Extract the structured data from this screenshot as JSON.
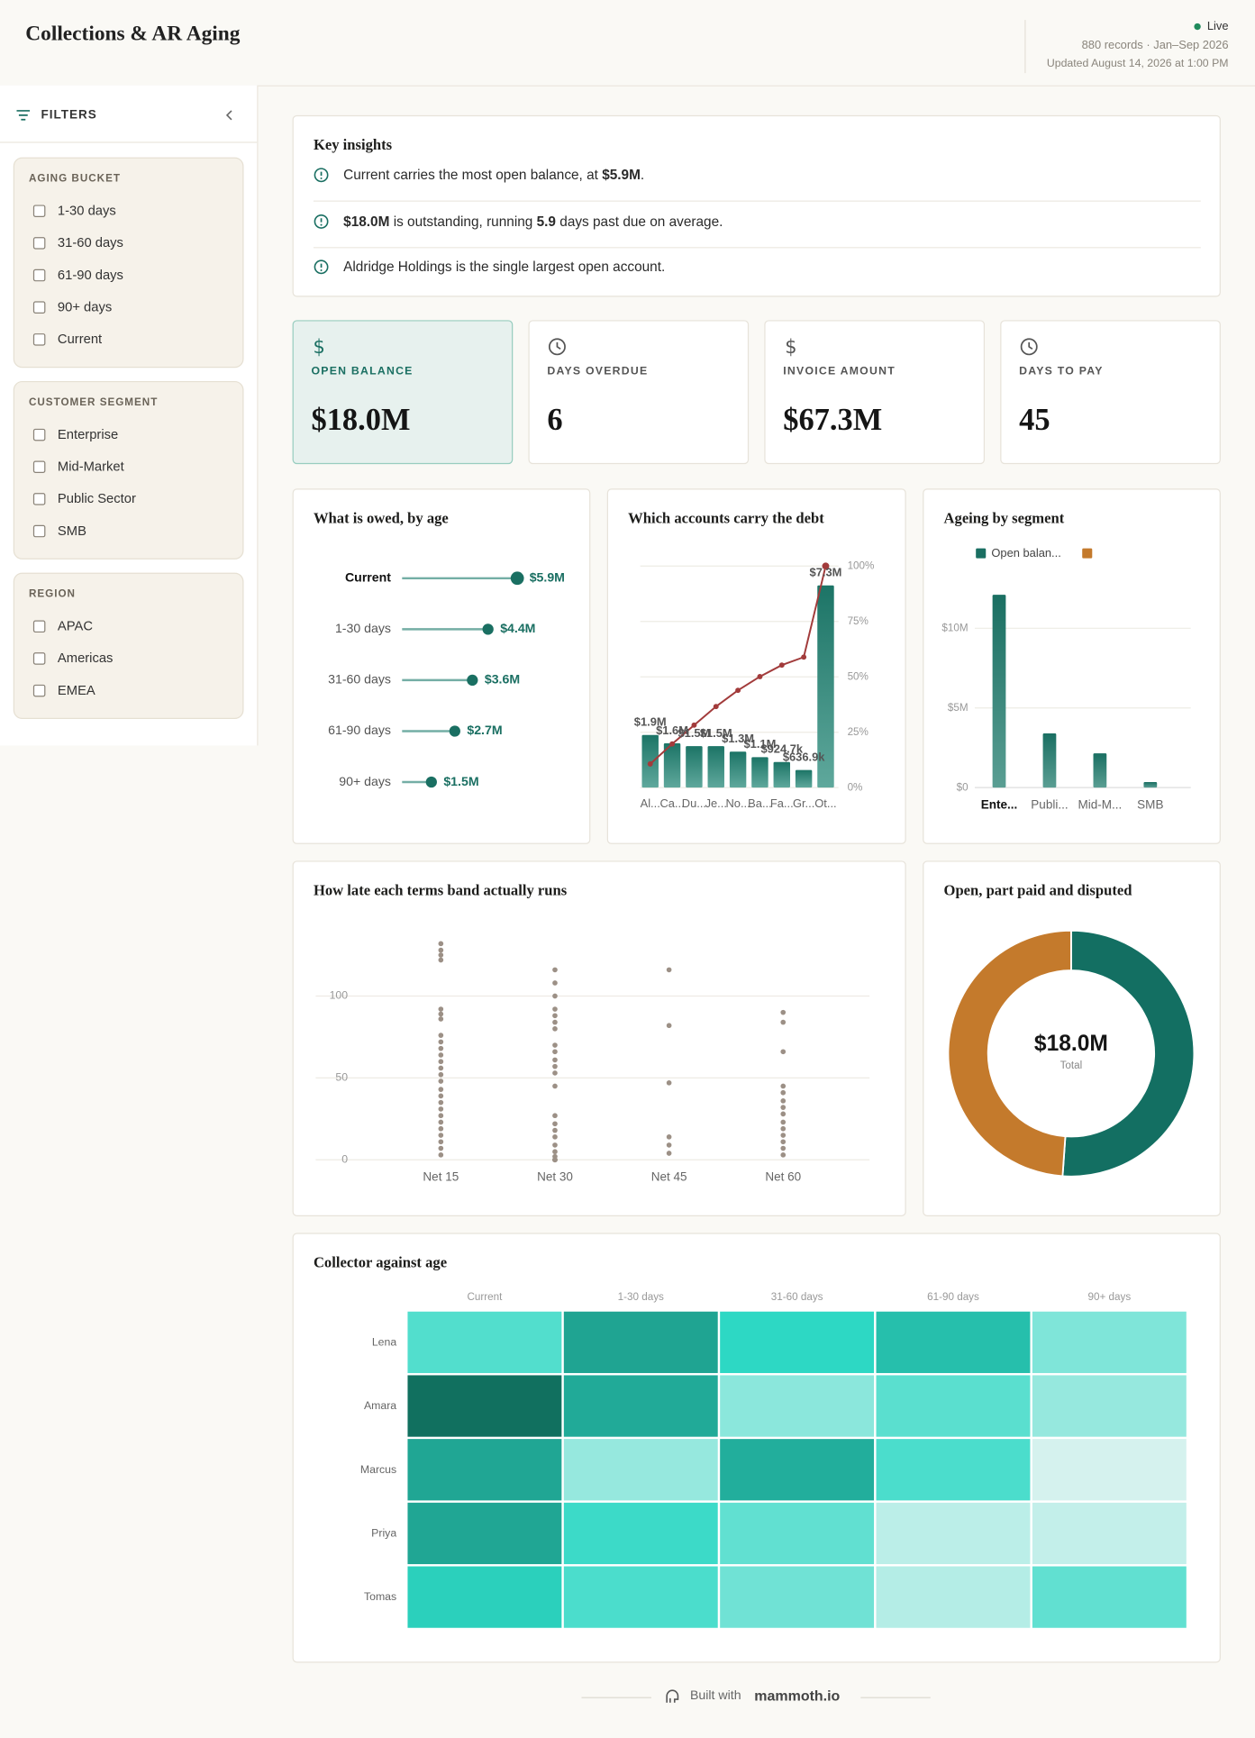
{
  "header": {
    "title": "Collections & AR Aging",
    "status": "Live",
    "records": "880 records · Jan–Sep 2026",
    "updated": "Updated August 14, 2026 at 1:00 PM"
  },
  "filters": {
    "title": "FILTERS",
    "groups": [
      {
        "title": "AGING BUCKET",
        "options": [
          "1-30 days",
          "31-60 days",
          "61-90 days",
          "90+ days",
          "Current"
        ]
      },
      {
        "title": "CUSTOMER SEGMENT",
        "options": [
          "Enterprise",
          "Mid-Market",
          "Public Sector",
          "SMB"
        ]
      },
      {
        "title": "REGION",
        "options": [
          "APAC",
          "Americas",
          "EMEA"
        ]
      }
    ]
  },
  "insights": {
    "title": "Key insights",
    "items": [
      {
        "segments": [
          {
            "text": "Current carries the most open balance, at "
          },
          {
            "text": "$5.9M",
            "bold": true
          },
          {
            "text": "."
          }
        ]
      },
      {
        "segments": [
          {
            "text": "$18.0M",
            "bold": true
          },
          {
            "text": " is outstanding, running "
          },
          {
            "text": "5.9",
            "bold": true
          },
          {
            "text": " days past due on average."
          }
        ]
      },
      {
        "segments": [
          {
            "text": "Aldridge Holdings is the single largest open account."
          }
        ]
      }
    ]
  },
  "kpis": [
    {
      "label": "OPEN BALANCE",
      "value": "$18.0M"
    },
    {
      "label": "DAYS OVERDUE",
      "value": "6"
    },
    {
      "label": "INVOICE AMOUNT",
      "value": "$67.3M"
    },
    {
      "label": "DAYS TO PAY",
      "value": "45"
    }
  ],
  "chart_data": [
    {
      "type": "lollipop",
      "title": "What is owed, by age",
      "categories": [
        "Current",
        "1-30 days",
        "31-60 days",
        "61-90 days",
        "90+ days"
      ],
      "values": [
        5.9,
        4.4,
        3.6,
        2.7,
        1.5
      ],
      "value_labels": [
        "$5.9M",
        "$4.4M",
        "$3.6M",
        "$2.7M",
        "$1.5M"
      ],
      "color": "#1a6f62"
    },
    {
      "type": "pareto",
      "title": "Which accounts carry the debt",
      "categories": [
        "Al...",
        "Ca...",
        "Du...",
        "Je...",
        "No...",
        "Ba...",
        "Fa...",
        "Gr...",
        "Ot..."
      ],
      "series": [
        {
          "color": "#1c7466",
          "values": [
            1.9,
            1.6,
            1.5,
            1.5,
            1.3,
            1.1,
            0.9247,
            0.6369,
            7.3
          ],
          "value_labels": [
            "$1.9M",
            "$1.6M",
            "$1.5M",
            "$1.5M",
            "$1.3M",
            "$1.1M",
            "$924.7k",
            "$636.9k",
            "$7.3M"
          ]
        },
        {
          "axis": "y2",
          "color": "#a23b3b",
          "values": [
            10.7,
            19.7,
            28.2,
            36.6,
            43.9,
            50.1,
            55.3,
            58.9,
            100
          ]
        }
      ],
      "ylim": [
        0,
        8
      ],
      "y2lim": [
        0,
        100
      ],
      "y2ticks": [
        {
          "value": 0,
          "label": "0%"
        },
        {
          "value": 25,
          "label": "25%"
        },
        {
          "value": 50,
          "label": "50%"
        },
        {
          "value": 75,
          "label": "75%"
        },
        {
          "value": 100,
          "label": "100%"
        }
      ],
      "grid": true
    },
    {
      "type": "bar",
      "title": "Ageing by segment",
      "categories": [
        "Ente...",
        "Publi...",
        "Mid-M...",
        "SMB"
      ],
      "series": [
        {
          "name": "Open balan...",
          "color": "#1a6f62",
          "values": [
            12.1,
            3.4,
            2.15,
            0.35
          ]
        },
        {
          "name": null,
          "color": "#c47a2c",
          "values": [
            null,
            null,
            null,
            null
          ]
        }
      ],
      "ylim": [
        0,
        13
      ],
      "yticks": [
        {
          "value": 0,
          "label": "$0"
        },
        {
          "value": 5,
          "label": "$5M"
        },
        {
          "value": 10,
          "label": "$10M"
        }
      ],
      "grid": true
    },
    {
      "type": "strip",
      "title": "How late each terms band actually runs",
      "categories": [
        "Net 15",
        "Net 30",
        "Net 45",
        "Net 60"
      ],
      "values": [
        [
          132,
          128,
          125,
          122,
          92,
          89,
          86,
          76,
          72,
          68,
          64,
          60,
          56,
          52,
          48,
          43,
          39,
          35,
          31,
          27,
          23,
          19,
          15,
          11,
          7,
          3
        ],
        [
          116,
          108,
          100,
          92,
          88,
          84,
          80,
          70,
          66,
          61,
          57,
          53,
          45,
          27,
          22,
          18,
          14,
          9,
          5,
          2,
          0,
          0,
          0,
          0
        ],
        [
          116,
          82,
          47,
          14,
          9,
          4
        ],
        [
          90,
          84,
          66,
          45,
          41,
          36,
          32,
          28,
          23,
          19,
          15,
          11,
          7,
          3
        ]
      ],
      "color": "#9c9086",
      "ylim": [
        0,
        140
      ],
      "yticks": [
        0,
        50,
        100
      ],
      "grid": true
    },
    {
      "type": "donut",
      "title": "Open, part paid and disputed",
      "categories": [
        null,
        null
      ],
      "values": [
        9.2,
        8.8
      ],
      "colors": [
        "#136f62",
        "#c47a2c"
      ],
      "center_label": "$18.0M",
      "center_sublabel": "Total"
    },
    {
      "type": "heatmap",
      "title": "Collector against age",
      "categories": [
        "Current",
        "1-30 days",
        "31-60 days",
        "61-90 days",
        "90+ days"
      ],
      "rows": [
        "Lena",
        "Amara",
        "Marcus",
        "Priya",
        "Tomas"
      ],
      "values": [
        [
          40,
          75,
          50,
          62,
          28
        ],
        [
          100,
          72,
          25,
          38,
          22
        ],
        [
          74,
          22,
          70,
          42,
          5
        ],
        [
          74,
          46,
          36,
          12,
          10
        ],
        [
          54,
          42,
          32,
          14,
          36
        ]
      ],
      "zlim": [
        0,
        100
      ],
      "colors": [
        "#e8f5f3",
        "#2dd8c4",
        "#11705f"
      ]
    }
  ],
  "footer": {
    "prefix": "Built with",
    "brand": "mammoth.io"
  }
}
